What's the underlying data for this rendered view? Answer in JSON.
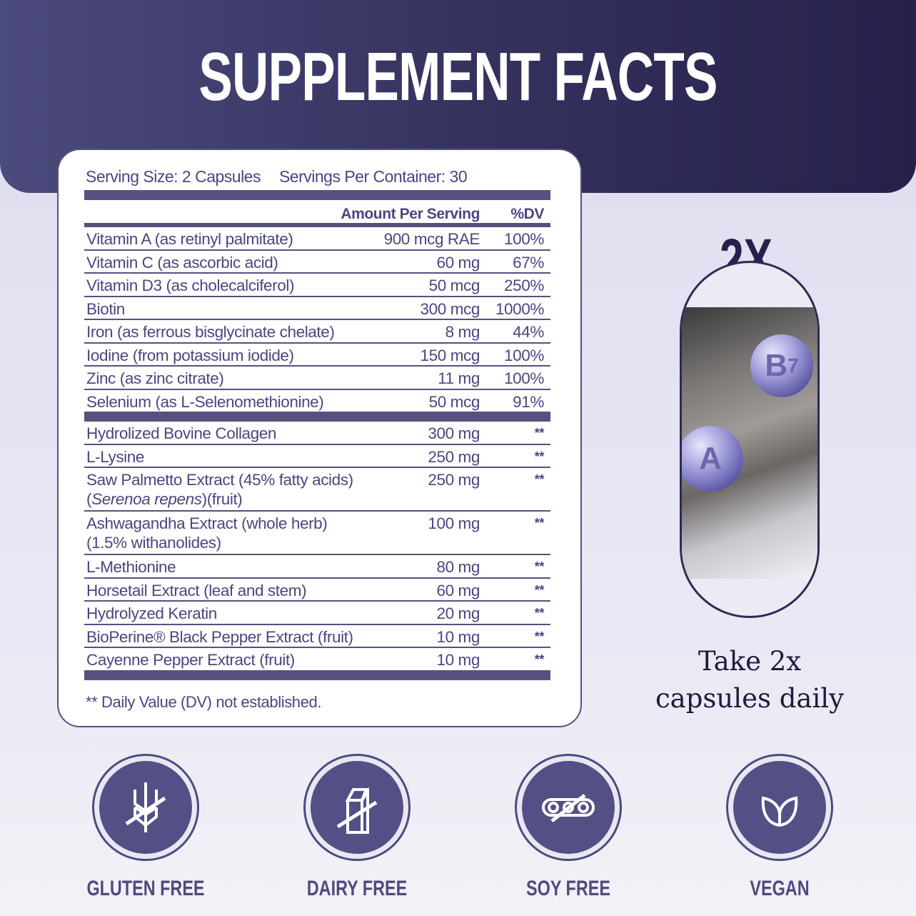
{
  "header": {
    "title": "SUPPLEMENT FACTS"
  },
  "facts": {
    "serving_size": "Serving Size: 2 Capsules",
    "servings_per_container": "Servings Per Container: 30",
    "col_amount": "Amount Per Serving",
    "col_dv": "%DV",
    "vitamins": [
      {
        "name": "Vitamin A (as retinyl palmitate)",
        "amount": "900 mcg RAE",
        "dv": "100%"
      },
      {
        "name": "Vitamin C (as ascorbic acid)",
        "amount": "60 mg",
        "dv": "67%"
      },
      {
        "name": "Vitamin D3 (as cholecalciferol)",
        "amount": "50 mcg",
        "dv": "250%"
      },
      {
        "name": "Biotin",
        "amount": "300 mcg",
        "dv": "1000%"
      },
      {
        "name": "Iron (as ferrous bisglycinate chelate)",
        "amount": "8 mg",
        "dv": "44%"
      },
      {
        "name": "Iodine (from potassium iodide)",
        "amount": "150 mcg",
        "dv": "100%"
      },
      {
        "name": "Zinc (as zinc citrate)",
        "amount": "11 mg",
        "dv": "100%"
      },
      {
        "name": "Selenium (as L-Selenomethionine)",
        "amount": "50 mcg",
        "dv": "91%"
      }
    ],
    "others": [
      {
        "name": "Hydrolized Bovine Collagen",
        "amount": "300 mg",
        "dv": "**"
      },
      {
        "name": "L-Lysine",
        "amount": "250 mg",
        "dv": "**"
      },
      {
        "name": "Saw Palmetto Extract (45% fatty acids)",
        "name2_italic": "Serenoa repens",
        "name2_rest": "(fruit)",
        "amount": "250 mg",
        "dv": "**"
      },
      {
        "name": "Ashwagandha Extract (whole herb)",
        "name2": "(1.5% withanolides)",
        "amount": "100 mg",
        "dv": "**"
      },
      {
        "name": "L-Methionine",
        "amount": "80 mg",
        "dv": "**"
      },
      {
        "name": "Horsetail Extract (leaf and stem)",
        "amount": "60 mg",
        "dv": "**"
      },
      {
        "name": "Hydrolyzed Keratin",
        "amount": "20 mg",
        "dv": "**"
      },
      {
        "name": "BioPerine® Black Pepper Extract (fruit)",
        "amount": "10 mg",
        "dv": "**"
      },
      {
        "name": "Cayenne Pepper Extract (fruit)",
        "amount": "10 mg",
        "dv": "**"
      }
    ],
    "footnote": "** Daily Value (DV) not established."
  },
  "dosage": {
    "multiplier": "2X",
    "sphere_b": "B",
    "sphere_b_sub": "7",
    "sphere_a": "A",
    "line1": "Take 2x",
    "line2": "capsules daily"
  },
  "badges": [
    {
      "label": "GLUTEN FREE",
      "icon": "no-wheat-icon"
    },
    {
      "label": "DAIRY FREE",
      "icon": "no-milk-icon"
    },
    {
      "label": "SOY FREE",
      "icon": "no-soy-icon"
    },
    {
      "label": "VEGAN",
      "icon": "leaf-icon"
    }
  ],
  "colors": {
    "primary": "#55527f",
    "header_dark": "#25214b",
    "background": "#e6e4f3"
  }
}
